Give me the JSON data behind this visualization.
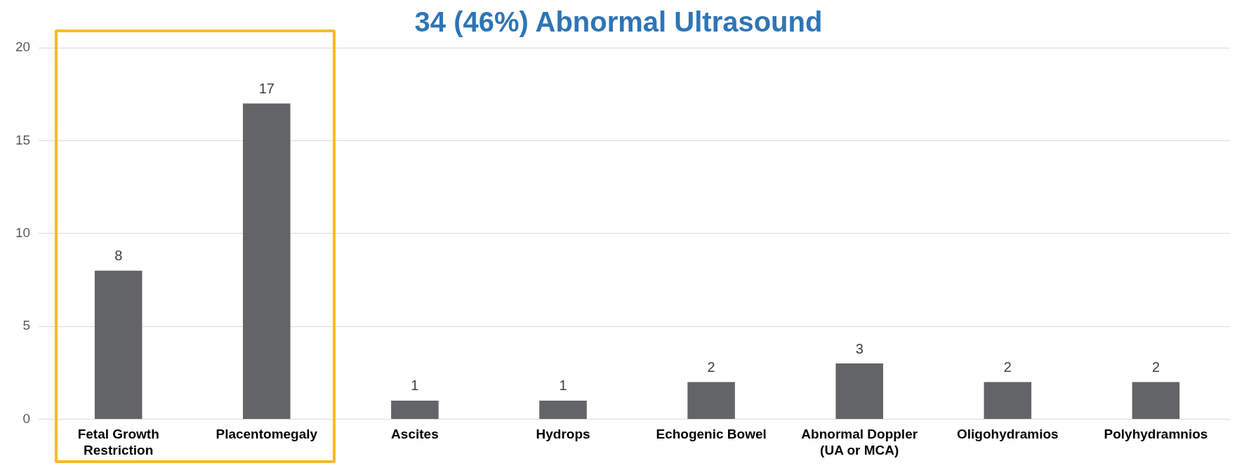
{
  "chart_data": {
    "type": "bar",
    "title": "34 (46%) Abnormal Ultrasound",
    "categories": [
      "Fetal Growth Restriction",
      "Placentomegaly",
      "Ascites",
      "Hydrops",
      "Echogenic Bowel",
      "Abnormal Doppler (UA or MCA)",
      "Oligohydramios",
      "Polyhydramnios"
    ],
    "values": [
      8,
      17,
      1,
      1,
      2,
      3,
      2,
      2
    ],
    "color": "#636466",
    "ylim": [
      0,
      20
    ],
    "yticks": [
      0,
      5,
      10,
      15,
      20
    ],
    "grid": "y",
    "data_labels": true,
    "legend": false
  }
}
